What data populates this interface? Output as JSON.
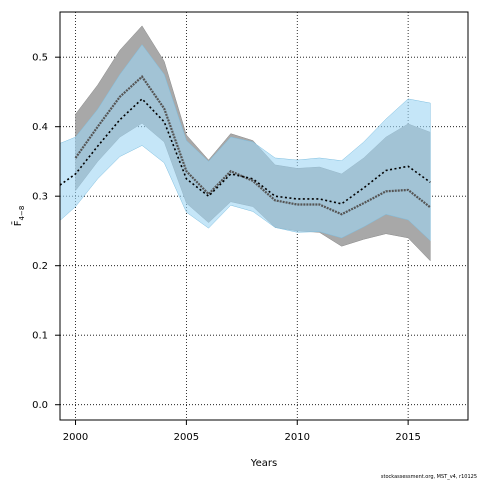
{
  "chart_data": {
    "type": "line",
    "xlabel": "Years",
    "ylabel": "F̄",
    "ylabel_subscript": "4−8",
    "xlim": [
      1999.3,
      2017.7
    ],
    "ylim": [
      -0.022,
      0.565
    ],
    "x_ticks": [
      2000,
      2005,
      2010,
      2015
    ],
    "y_ticks": [
      0.0,
      0.1,
      0.2,
      0.3,
      0.4,
      0.5
    ],
    "y_tick_labels": [
      "0.0",
      "0.1",
      "0.2",
      "0.3",
      "0.4",
      "0.5"
    ],
    "x_tick_labels": [
      "2000",
      "2005",
      "2010",
      "2015"
    ],
    "grid": true,
    "footer": "stockassessment.org, MST_v4, r10125",
    "colors": {
      "band_gray": "#a8a8a8",
      "band_blue": "#9fd6f3",
      "band_overlap": "#8fb8cc",
      "line_gray": "#555555",
      "line_black": "#000000"
    },
    "series": [
      {
        "x": [
          2000,
          2001,
          2002,
          2003,
          2004,
          2005,
          2006,
          2007,
          2008,
          2009,
          2010,
          2011,
          2012,
          2013,
          2014,
          2015,
          2016
        ],
        "values": [
          0.355,
          0.4,
          0.443,
          0.472,
          0.426,
          0.336,
          0.303,
          0.336,
          0.322,
          0.294,
          0.288,
          0.288,
          0.274,
          0.29,
          0.307,
          0.309,
          0.284
        ],
        "lower": [
          0.308,
          0.35,
          0.385,
          0.405,
          0.378,
          0.29,
          0.262,
          0.292,
          0.285,
          0.255,
          0.25,
          0.248,
          0.228,
          0.238,
          0.246,
          0.24,
          0.207
        ],
        "upper": [
          0.418,
          0.46,
          0.51,
          0.545,
          0.494,
          0.388,
          0.352,
          0.39,
          0.38,
          0.345,
          0.34,
          0.342,
          0.332,
          0.355,
          0.385,
          0.404,
          0.392
        ]
      },
      {
        "x": [
          1999.3,
          2000,
          2001,
          2002,
          2003,
          2004,
          2005,
          2006,
          2007,
          2008,
          2009,
          2010,
          2011,
          2012,
          2013,
          2014,
          2015,
          2016
        ],
        "values": [
          0.316,
          0.332,
          0.372,
          0.41,
          0.44,
          0.407,
          0.325,
          0.3,
          0.332,
          0.325,
          0.3,
          0.296,
          0.296,
          0.289,
          0.312,
          0.337,
          0.343,
          0.32
        ],
        "lower": [
          0.265,
          0.285,
          0.325,
          0.357,
          0.373,
          0.348,
          0.277,
          0.254,
          0.287,
          0.278,
          0.255,
          0.248,
          0.249,
          0.24,
          0.256,
          0.274,
          0.266,
          0.236
        ],
        "upper": [
          0.376,
          0.385,
          0.425,
          0.475,
          0.518,
          0.475,
          0.38,
          0.35,
          0.385,
          0.378,
          0.355,
          0.352,
          0.355,
          0.351,
          0.378,
          0.411,
          0.44,
          0.434
        ]
      }
    ]
  }
}
